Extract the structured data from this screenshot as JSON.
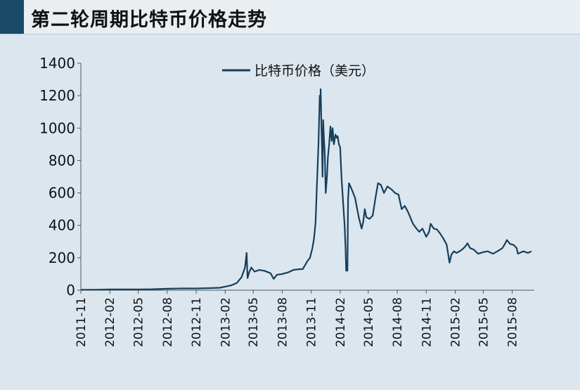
{
  "title": "第二轮周期比特币价格走势",
  "colors": {
    "line": "#163f5c",
    "accent": "#1a4a68",
    "background": "#dce6ee"
  },
  "chart_data": {
    "type": "line",
    "title": "第二轮周期比特币价格走势",
    "xlabel": "",
    "ylabel": "",
    "ylim": [
      0,
      1400
    ],
    "yticks": [
      0,
      200,
      400,
      600,
      800,
      1000,
      1200,
      1400
    ],
    "xticks": [
      "2011-11",
      "2012-02",
      "2012-05",
      "2012-08",
      "2012-11",
      "2013-02",
      "2013-05",
      "2013-08",
      "2013-11",
      "2014-02",
      "2014-05",
      "2014-08",
      "2014-11",
      "2015-02",
      "2015-05",
      "2015-08"
    ],
    "grid": false,
    "legend": "top-center",
    "series": [
      {
        "name": "比特币价格（美元）",
        "points": [
          [
            "2011-11-01",
            3
          ],
          [
            "2011-12-15",
            3
          ],
          [
            "2012-02-01",
            5
          ],
          [
            "2012-03-15",
            5
          ],
          [
            "2012-05-01",
            5
          ],
          [
            "2012-06-15",
            6
          ],
          [
            "2012-08-01",
            9
          ],
          [
            "2012-09-15",
            11
          ],
          [
            "2012-11-01",
            11
          ],
          [
            "2012-12-15",
            13
          ],
          [
            "2013-01-15",
            15
          ],
          [
            "2013-02-01",
            22
          ],
          [
            "2013-02-20",
            30
          ],
          [
            "2013-03-10",
            45
          ],
          [
            "2013-03-25",
            80
          ],
          [
            "2013-04-05",
            140
          ],
          [
            "2013-04-10",
            230
          ],
          [
            "2013-04-13",
            75
          ],
          [
            "2013-04-18",
            110
          ],
          [
            "2013-04-25",
            140
          ],
          [
            "2013-05-05",
            115
          ],
          [
            "2013-05-20",
            125
          ],
          [
            "2013-06-05",
            120
          ],
          [
            "2013-06-25",
            105
          ],
          [
            "2013-07-05",
            70
          ],
          [
            "2013-07-15",
            95
          ],
          [
            "2013-08-01",
            100
          ],
          [
            "2013-08-20",
            110
          ],
          [
            "2013-09-05",
            125
          ],
          [
            "2013-09-25",
            130
          ],
          [
            "2013-10-05",
            130
          ],
          [
            "2013-10-20",
            180
          ],
          [
            "2013-10-28",
            200
          ],
          [
            "2013-11-05",
            260
          ],
          [
            "2013-11-10",
            320
          ],
          [
            "2013-11-15",
            420
          ],
          [
            "2013-11-19",
            640
          ],
          [
            "2013-11-24",
            900
          ],
          [
            "2013-11-28",
            1200
          ],
          [
            "2013-11-30",
            1150
          ],
          [
            "2013-12-01",
            1240
          ],
          [
            "2013-12-03",
            1050
          ],
          [
            "2013-12-05",
            900
          ],
          [
            "2013-12-07",
            700
          ],
          [
            "2013-12-09",
            1050
          ],
          [
            "2013-12-11",
            950
          ],
          [
            "2013-12-14",
            850
          ],
          [
            "2013-12-17",
            600
          ],
          [
            "2013-12-21",
            700
          ],
          [
            "2013-12-24",
            820
          ],
          [
            "2013-12-28",
            900
          ],
          [
            "2014-01-01",
            1010
          ],
          [
            "2014-01-05",
            920
          ],
          [
            "2014-01-08",
            1000
          ],
          [
            "2014-01-12",
            900
          ],
          [
            "2014-01-17",
            960
          ],
          [
            "2014-01-21",
            940
          ],
          [
            "2014-01-24",
            950
          ],
          [
            "2014-01-28",
            900
          ],
          [
            "2014-02-01",
            880
          ],
          [
            "2014-02-05",
            700
          ],
          [
            "2014-02-10",
            550
          ],
          [
            "2014-02-15",
            400
          ],
          [
            "2014-02-18",
            260
          ],
          [
            "2014-02-20",
            120
          ],
          [
            "2014-02-22",
            130
          ],
          [
            "2014-02-24",
            120
          ],
          [
            "2014-02-26",
            560
          ],
          [
            "2014-03-01",
            660
          ],
          [
            "2014-03-10",
            620
          ],
          [
            "2014-03-20",
            570
          ],
          [
            "2014-04-01",
            450
          ],
          [
            "2014-04-10",
            380
          ],
          [
            "2014-04-15",
            420
          ],
          [
            "2014-04-20",
            500
          ],
          [
            "2014-04-25",
            450
          ],
          [
            "2014-05-05",
            440
          ],
          [
            "2014-05-15",
            460
          ],
          [
            "2014-05-25",
            580
          ],
          [
            "2014-06-01",
            660
          ],
          [
            "2014-06-10",
            650
          ],
          [
            "2014-06-20",
            600
          ],
          [
            "2014-07-01",
            640
          ],
          [
            "2014-07-15",
            620
          ],
          [
            "2014-07-25",
            600
          ],
          [
            "2014-08-05",
            590
          ],
          [
            "2014-08-15",
            500
          ],
          [
            "2014-08-25",
            520
          ],
          [
            "2014-09-05",
            480
          ],
          [
            "2014-09-20",
            410
          ],
          [
            "2014-10-01",
            380
          ],
          [
            "2014-10-10",
            360
          ],
          [
            "2014-10-20",
            380
          ],
          [
            "2014-11-01",
            330
          ],
          [
            "2014-11-10",
            360
          ],
          [
            "2014-11-15",
            410
          ],
          [
            "2014-11-25",
            380
          ],
          [
            "2014-12-05",
            375
          ],
          [
            "2014-12-15",
            350
          ],
          [
            "2014-12-25",
            320
          ],
          [
            "2015-01-05",
            280
          ],
          [
            "2015-01-14",
            170
          ],
          [
            "2015-01-20",
            220
          ],
          [
            "2015-01-28",
            240
          ],
          [
            "2015-02-05",
            230
          ],
          [
            "2015-02-15",
            240
          ],
          [
            "2015-02-25",
            255
          ],
          [
            "2015-03-05",
            270
          ],
          [
            "2015-03-12",
            290
          ],
          [
            "2015-03-20",
            260
          ],
          [
            "2015-04-01",
            250
          ],
          [
            "2015-04-15",
            225
          ],
          [
            "2015-05-01",
            235
          ],
          [
            "2015-05-15",
            240
          ],
          [
            "2015-06-01",
            225
          ],
          [
            "2015-06-15",
            240
          ],
          [
            "2015-07-01",
            260
          ],
          [
            "2015-07-10",
            290
          ],
          [
            "2015-07-15",
            310
          ],
          [
            "2015-07-25",
            285
          ],
          [
            "2015-08-05",
            280
          ],
          [
            "2015-08-15",
            260
          ],
          [
            "2015-08-19",
            225
          ],
          [
            "2015-08-25",
            230
          ],
          [
            "2015-09-05",
            240
          ],
          [
            "2015-09-20",
            230
          ],
          [
            "2015-10-01",
            240
          ]
        ]
      }
    ]
  }
}
